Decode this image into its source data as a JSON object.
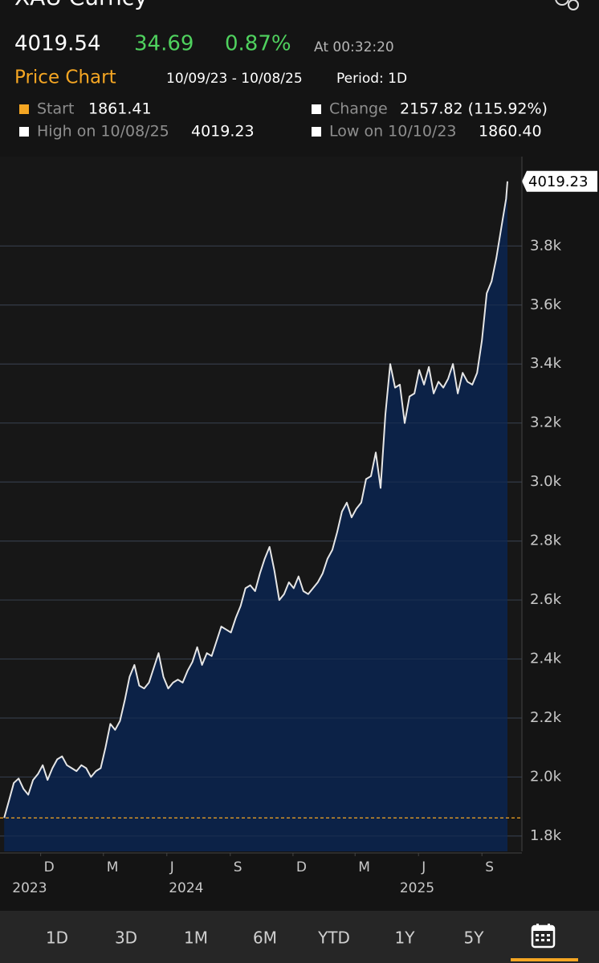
{
  "title": "XAU Curncy",
  "quote": {
    "price": "4019.54",
    "change": "34.69",
    "change_pct": "0.87%",
    "time": "At 00:32:20"
  },
  "chart_header": {
    "title": "Price Chart",
    "range": "10/09/23 - 10/08/25",
    "period": "Period: 1D"
  },
  "stats": [
    {
      "label": "Start",
      "value": 1861.41
    },
    {
      "label": "Change",
      "value": "2157.82 (115.92%)"
    },
    {
      "label": "High on 10/08/25",
      "value": "4019.23"
    },
    {
      "label": "Low on 10/10/23",
      "value": "1860.40"
    }
  ],
  "chart_data": {
    "type": "area",
    "x": [
      "2023-10-09",
      "2023-10-16",
      "2023-10-23",
      "2023-10-30",
      "2023-11-06",
      "2023-11-13",
      "2023-11-20",
      "2023-11-27",
      "2023-12-04",
      "2023-12-11",
      "2023-12-18",
      "2023-12-25",
      "2024-01-01",
      "2024-01-08",
      "2024-01-15",
      "2024-01-22",
      "2024-01-29",
      "2024-02-05",
      "2024-02-12",
      "2024-02-19",
      "2024-02-26",
      "2024-03-04",
      "2024-03-11",
      "2024-03-18",
      "2024-03-25",
      "2024-04-01",
      "2024-04-08",
      "2024-04-15",
      "2024-04-22",
      "2024-04-29",
      "2024-05-06",
      "2024-05-13",
      "2024-05-20",
      "2024-05-27",
      "2024-06-03",
      "2024-06-10",
      "2024-06-17",
      "2024-06-24",
      "2024-07-01",
      "2024-07-08",
      "2024-07-15",
      "2024-07-22",
      "2024-07-29",
      "2024-08-05",
      "2024-08-12",
      "2024-08-19",
      "2024-08-26",
      "2024-09-02",
      "2024-09-09",
      "2024-09-16",
      "2024-09-23",
      "2024-09-30",
      "2024-10-07",
      "2024-10-14",
      "2024-10-21",
      "2024-10-28",
      "2024-11-04",
      "2024-11-11",
      "2024-11-18",
      "2024-11-25",
      "2024-12-02",
      "2024-12-09",
      "2024-12-16",
      "2024-12-23",
      "2024-12-30",
      "2025-01-06",
      "2025-01-13",
      "2025-01-20",
      "2025-01-27",
      "2025-02-03",
      "2025-02-10",
      "2025-02-17",
      "2025-02-24",
      "2025-03-03",
      "2025-03-10",
      "2025-03-17",
      "2025-03-24",
      "2025-03-31",
      "2025-04-07",
      "2025-04-14",
      "2025-04-21",
      "2025-04-28",
      "2025-05-05",
      "2025-05-12",
      "2025-05-19",
      "2025-05-26",
      "2025-06-02",
      "2025-06-09",
      "2025-06-16",
      "2025-06-23",
      "2025-06-30",
      "2025-07-07",
      "2025-07-14",
      "2025-07-21",
      "2025-07-28",
      "2025-08-04",
      "2025-08-11",
      "2025-08-18",
      "2025-08-25",
      "2025-09-01",
      "2025-09-08",
      "2025-09-15",
      "2025-09-22",
      "2025-09-29",
      "2025-10-06",
      "2025-10-08"
    ],
    "series": [
      {
        "name": "XAU Curncy",
        "color": "#e6e6e6",
        "fill": "#0c2247",
        "values": [
          1861.41,
          1920,
          1980,
          1995,
          1960,
          1940,
          1990,
          2010,
          2040,
          1990,
          2030,
          2060,
          2070,
          2040,
          2030,
          2020,
          2040,
          2030,
          2000,
          2020,
          2030,
          2100,
          2180,
          2160,
          2190,
          2260,
          2340,
          2380,
          2310,
          2300,
          2320,
          2370,
          2420,
          2340,
          2300,
          2320,
          2330,
          2320,
          2360,
          2390,
          2440,
          2380,
          2420,
          2410,
          2460,
          2510,
          2500,
          2490,
          2540,
          2580,
          2640,
          2650,
          2630,
          2690,
          2740,
          2780,
          2700,
          2600,
          2620,
          2660,
          2640,
          2680,
          2630,
          2620,
          2640,
          2660,
          2690,
          2740,
          2770,
          2830,
          2900,
          2930,
          2880,
          2910,
          2930,
          3010,
          3020,
          3100,
          2980,
          3230,
          3400,
          3320,
          3330,
          3200,
          3290,
          3300,
          3380,
          3330,
          3390,
          3300,
          3340,
          3320,
          3350,
          3400,
          3300,
          3370,
          3340,
          3330,
          3370,
          3480,
          3640,
          3680,
          3760,
          3860,
          3960,
          4019.23
        ]
      }
    ],
    "xlim": [
      "2023-10-03",
      "2025-10-29"
    ],
    "xticks": [
      {
        "value": "2023-12-01",
        "label": "D"
      },
      {
        "value": "2024-03-01",
        "label": "M"
      },
      {
        "value": "2024-06-01",
        "label": "J"
      },
      {
        "value": "2024-09-01",
        "label": "S"
      },
      {
        "value": "2024-12-01",
        "label": "D"
      },
      {
        "value": "2025-03-01",
        "label": "M"
      },
      {
        "value": "2025-06-01",
        "label": "J"
      },
      {
        "value": "2025-09-01",
        "label": "S"
      }
    ],
    "year_labels": [
      {
        "value": "2023-11-15",
        "label": "2023"
      },
      {
        "value": "2024-06-29",
        "label": "2024"
      },
      {
        "value": "2025-05-30",
        "label": "2025"
      }
    ],
    "ylim": [
      1748,
      4103
    ],
    "yticks": [
      {
        "value": 1800,
        "label": "1.8k"
      },
      {
        "value": 2000,
        "label": "2.0k"
      },
      {
        "value": 2200,
        "label": "2.2k"
      },
      {
        "value": 2400,
        "label": "2.4k"
      },
      {
        "value": 2600,
        "label": "2.6k"
      },
      {
        "value": 2800,
        "label": "2.8k"
      },
      {
        "value": 3000,
        "label": "3.0k"
      },
      {
        "value": 3200,
        "label": "3.2k"
      },
      {
        "value": 3400,
        "label": "3.4k"
      },
      {
        "value": 3600,
        "label": "3.6k"
      },
      {
        "value": 3800,
        "label": "3.8k"
      }
    ],
    "grid": true,
    "reference_color": "#f5a623"
  },
  "tabs": [
    "1D",
    "3D",
    "1M",
    "6M",
    "YTD",
    "1Y",
    "5Y"
  ]
}
